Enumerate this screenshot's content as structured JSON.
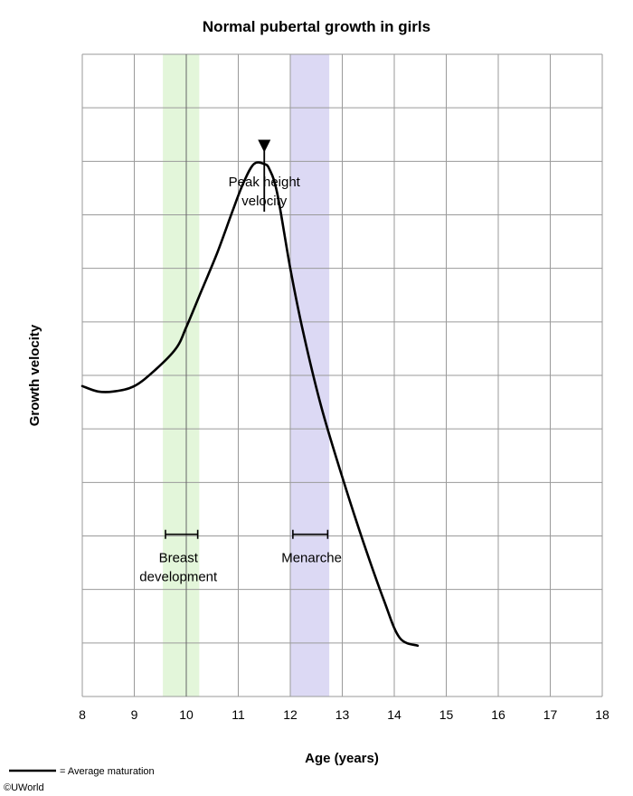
{
  "chart_data": {
    "type": "line",
    "title": "Normal pubertal growth in girls",
    "xlabel": "Age (years)",
    "ylabel": "Growth velocity",
    "xlim": [
      8,
      18
    ],
    "ylim": [
      0,
      12
    ],
    "x_ticks": [
      "8",
      "9",
      "10",
      "11",
      "12",
      "13",
      "14",
      "15",
      "16",
      "17",
      "18"
    ],
    "grid": true,
    "series": [
      {
        "name": "Average maturation",
        "x": [
          8.0,
          8.3,
          8.6,
          9.0,
          9.4,
          9.8,
          10.0,
          10.3,
          10.6,
          10.9,
          11.1,
          11.3,
          11.5,
          11.6,
          11.75,
          12.0,
          12.25,
          12.6,
          13.0,
          13.4,
          13.8,
          14.1,
          14.45
        ],
        "y": [
          5.8,
          5.7,
          5.7,
          5.8,
          6.1,
          6.5,
          6.9,
          7.6,
          8.3,
          9.1,
          9.6,
          9.95,
          9.95,
          9.85,
          9.4,
          8.0,
          6.8,
          5.4,
          4.1,
          2.9,
          1.8,
          1.1,
          0.95
        ]
      }
    ],
    "bands": [
      {
        "name": "Breast development",
        "x_start": 9.55,
        "x_end": 10.25,
        "color": "#e3f6da",
        "range_bar_y": 3.03,
        "avg_line_x": 10.0
      },
      {
        "name": "Menarche",
        "x_start": 12.0,
        "x_end": 12.75,
        "color": "#dcd9f4",
        "range_bar_y": 3.03
      }
    ],
    "annotations": [
      {
        "text_lines": [
          "Peak height",
          "velocity"
        ],
        "x": 11.5,
        "y": 10.2
      }
    ],
    "band_labels": {
      "breast": [
        "Breast",
        "development"
      ],
      "menarche": [
        "Menarche"
      ]
    },
    "legend_text": "= Average maturation",
    "credit": "©UWorld"
  },
  "colors": {
    "grid": "#9a9a9a",
    "line": "#000000",
    "breast_band": "#e3f6da",
    "menarche_band": "#dcd9f4"
  }
}
